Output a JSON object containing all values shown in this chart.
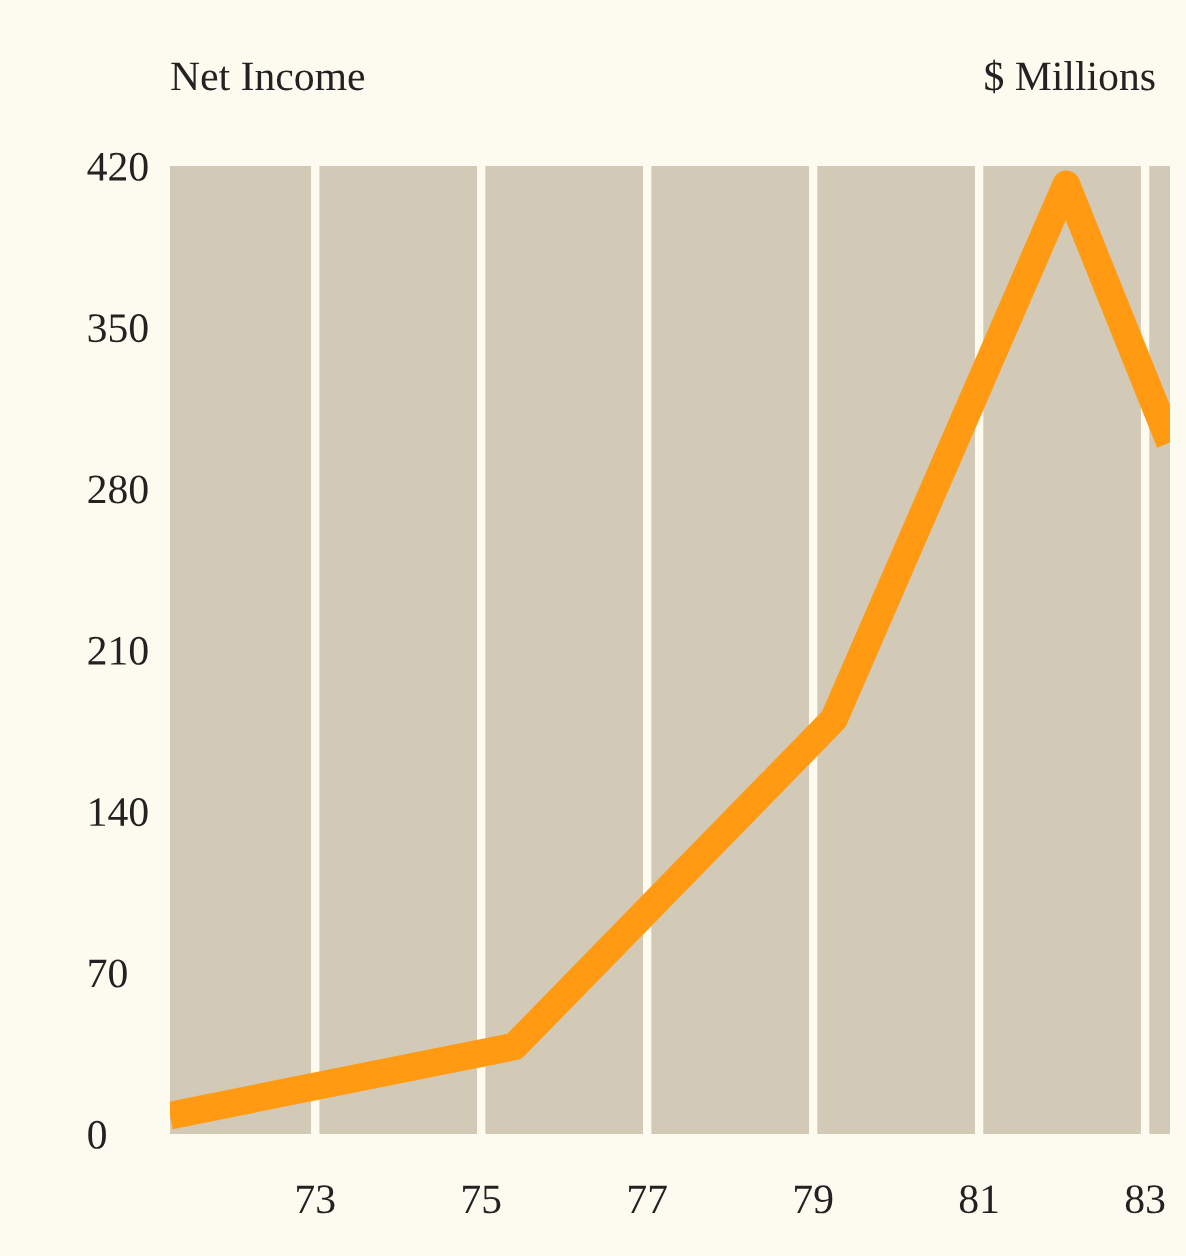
{
  "chart_data": {
    "type": "line",
    "title": "Net Income",
    "ylabel": "$ Millions",
    "x": [
      71.25,
      75.4,
      79.25,
      82.05,
      83.3
    ],
    "series": [
      {
        "color": "#ff9a12",
        "values": [
          8,
          38,
          180,
          412,
          300
        ]
      }
    ],
    "xlim": [
      71.25,
      83.3
    ],
    "xticks": [
      73,
      75,
      77,
      79,
      81,
      83
    ],
    "ylim": [
      0,
      420
    ],
    "yticks": [
      0,
      70,
      140,
      210,
      280,
      350,
      420
    ],
    "grid": "x",
    "marker": "none",
    "line_style": "solid"
  }
}
